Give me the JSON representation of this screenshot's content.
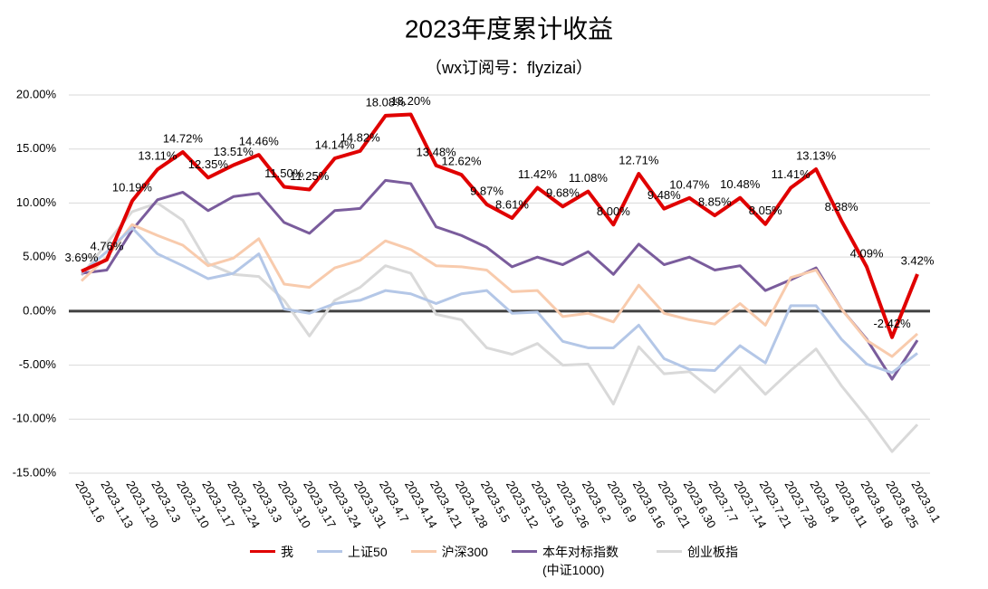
{
  "chart_data": {
    "type": "line",
    "title": "2023年度累计收益",
    "subtitle": "（wx订阅号：flyzizai）",
    "categories": [
      "2023.1.6",
      "2023.1.13",
      "2023.1.20",
      "2023.2.3",
      "2023.2.10",
      "2023.2.17",
      "2023.2.24",
      "2023.3.3",
      "2023.3.10",
      "2023.3.17",
      "2023.3.24",
      "2023.3.31",
      "2023.4.7",
      "2023.4.14",
      "2023.4.21",
      "2023.4.28",
      "2023.5.5",
      "2023.5.12",
      "2023.5.19",
      "2023.5.26",
      "2023.6.2",
      "2023.6.9",
      "2023.6.16",
      "2023.6.21",
      "2023.6.30",
      "2023.7.7",
      "2023.7.14",
      "2023.7.21",
      "2023.7.28",
      "2023.8.4",
      "2023.8.11",
      "2023.8.18",
      "2023.8.25",
      "2023.9.1"
    ],
    "series": [
      {
        "name": "我",
        "color": "#e00000",
        "values": [
          3.69,
          4.76,
          10.19,
          13.11,
          14.72,
          12.35,
          13.51,
          14.46,
          11.5,
          11.25,
          14.14,
          14.82,
          18.08,
          18.2,
          13.48,
          12.62,
          9.87,
          8.61,
          11.42,
          9.68,
          11.08,
          8.0,
          12.71,
          9.48,
          10.47,
          8.85,
          10.48,
          8.05,
          11.41,
          13.13,
          8.38,
          4.09,
          -2.42,
          3.42
        ],
        "value_labels": [
          "3.69%",
          "4.76%",
          "10.19%",
          "13.11%",
          "14.72%",
          "12.35%",
          "13.51%",
          "14.46%",
          "11.50%",
          "11.25%",
          "14.14%",
          "14.82%",
          "18.08%",
          "18.20%",
          "13.48%",
          "12.62%",
          "9.87%",
          "8.61%",
          "11.42%",
          "9.68%",
          "11.08%",
          "8.00%",
          "12.71%",
          "9.48%",
          "10.47%",
          "8.85%",
          "10.48%",
          "8.05%",
          "11.41%",
          "13.13%",
          "8.38%",
          "4.09%",
          "-2.42%",
          "3.42%"
        ]
      },
      {
        "name": "上证50",
        "color": "#b4c7e7",
        "values": [
          3.5,
          5.5,
          7.7,
          5.3,
          4.2,
          3.0,
          3.5,
          5.3,
          0.2,
          -0.2,
          0.7,
          1.0,
          1.9,
          1.6,
          0.7,
          1.6,
          1.9,
          -0.2,
          -0.1,
          -2.8,
          -3.4,
          -3.4,
          -1.3,
          -4.4,
          -5.4,
          -5.5,
          -3.2,
          -4.8,
          0.5,
          0.5,
          -2.6,
          -4.9,
          -5.7,
          -3.9
        ]
      },
      {
        "name": "沪深300",
        "color": "#f8cbad",
        "values": [
          2.8,
          5.0,
          8.0,
          7.0,
          6.1,
          4.2,
          4.9,
          6.7,
          2.5,
          2.2,
          4.0,
          4.7,
          6.5,
          5.7,
          4.2,
          4.1,
          3.8,
          1.8,
          1.9,
          -0.5,
          -0.2,
          -1.0,
          2.4,
          -0.2,
          -0.8,
          -1.2,
          0.7,
          -1.3,
          3.1,
          3.8,
          0.2,
          -2.7,
          -4.2,
          -2.1
        ]
      },
      {
        "name": "本年对标指数(中证1000)",
        "color": "#7a5c9c",
        "values": [
          3.5,
          3.8,
          7.5,
          10.3,
          11.0,
          9.3,
          10.6,
          10.9,
          8.2,
          7.2,
          9.3,
          9.5,
          12.1,
          11.8,
          7.8,
          7.0,
          5.9,
          4.1,
          5.0,
          4.3,
          5.5,
          3.4,
          6.2,
          4.3,
          5.0,
          3.8,
          4.2,
          1.9,
          2.9,
          4.0,
          0.2,
          -2.6,
          -6.3,
          -2.7
        ]
      },
      {
        "name": "创业板指",
        "color": "#d9d9d9",
        "values": [
          3.3,
          6.3,
          9.2,
          10.0,
          8.4,
          4.4,
          3.4,
          3.2,
          1.0,
          -2.3,
          1.0,
          2.2,
          4.2,
          3.5,
          -0.3,
          -0.8,
          -3.4,
          -4.0,
          -3.0,
          -5.0,
          -4.9,
          -8.6,
          -3.3,
          -5.8,
          -5.6,
          -7.5,
          -5.2,
          -7.7,
          -5.5,
          -3.5,
          -6.9,
          -9.8,
          -13.0,
          -10.5
        ]
      }
    ],
    "ylim": [
      -15,
      20
    ],
    "yticks": [
      {
        "value": -15,
        "label": "-15.00%"
      },
      {
        "value": -10,
        "label": "-10.00%"
      },
      {
        "value": -5,
        "label": "-5.00%"
      },
      {
        "value": 0,
        "label": "0.00%"
      },
      {
        "value": 5,
        "label": "5.00%"
      },
      {
        "value": 10,
        "label": "10.00%"
      },
      {
        "value": 15,
        "label": "15.00%"
      },
      {
        "value": 20,
        "label": "20.00%"
      }
    ],
    "grid": true,
    "legend": "bottom"
  }
}
